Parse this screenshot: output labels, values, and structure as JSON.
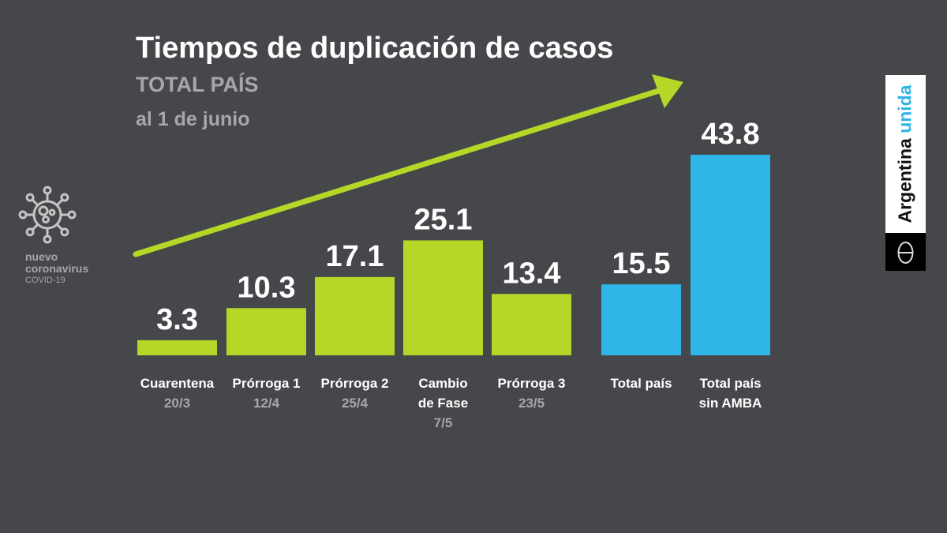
{
  "header": {
    "title": "Tiempos de duplicación de casos",
    "subtitle": "TOTAL PAÍS",
    "date": "al 1 de junio"
  },
  "logo": {
    "line1": "nuevo",
    "line2": "coronavirus",
    "line3": "COVID-19"
  },
  "brand": {
    "word1": "Argentina",
    "word2": "unida"
  },
  "colors": {
    "background": "#46474b",
    "green": "#b5d828",
    "blue": "#2fb5e8",
    "label": "#ffffff",
    "date_label": "#a9a6a8"
  },
  "chart_data": {
    "type": "bar",
    "title": "Tiempos de duplicación de casos",
    "subtitle": "TOTAL PAÍS al 1 de junio",
    "categories": [
      {
        "label": [
          "Cuarentena"
        ],
        "date": "20/3"
      },
      {
        "label": [
          "Prórroga 1"
        ],
        "date": "12/4"
      },
      {
        "label": [
          "Prórroga 2"
        ],
        "date": "25/4"
      },
      {
        "label": [
          "Cambio",
          "de Fase"
        ],
        "date": "7/5"
      },
      {
        "label": [
          "Prórroga 3"
        ],
        "date": "23/5"
      },
      {
        "label": [
          "Total país"
        ],
        "date": ""
      },
      {
        "label": [
          "Total país",
          "sin AMBA"
        ],
        "date": ""
      }
    ],
    "values": [
      3.3,
      10.3,
      17.1,
      25.1,
      13.4,
      15.5,
      43.8
    ],
    "value_labels": [
      "3.3",
      "10.3",
      "17.1",
      "25.1",
      "13.4",
      "15.5",
      "43.8"
    ],
    "bar_colors": [
      "#b5d828",
      "#b5d828",
      "#b5d828",
      "#b5d828",
      "#b5d828",
      "#2fb5e8",
      "#2fb5e8"
    ],
    "ylim": [
      0,
      45
    ],
    "grid": false,
    "annotation": "upward trend arrow"
  }
}
